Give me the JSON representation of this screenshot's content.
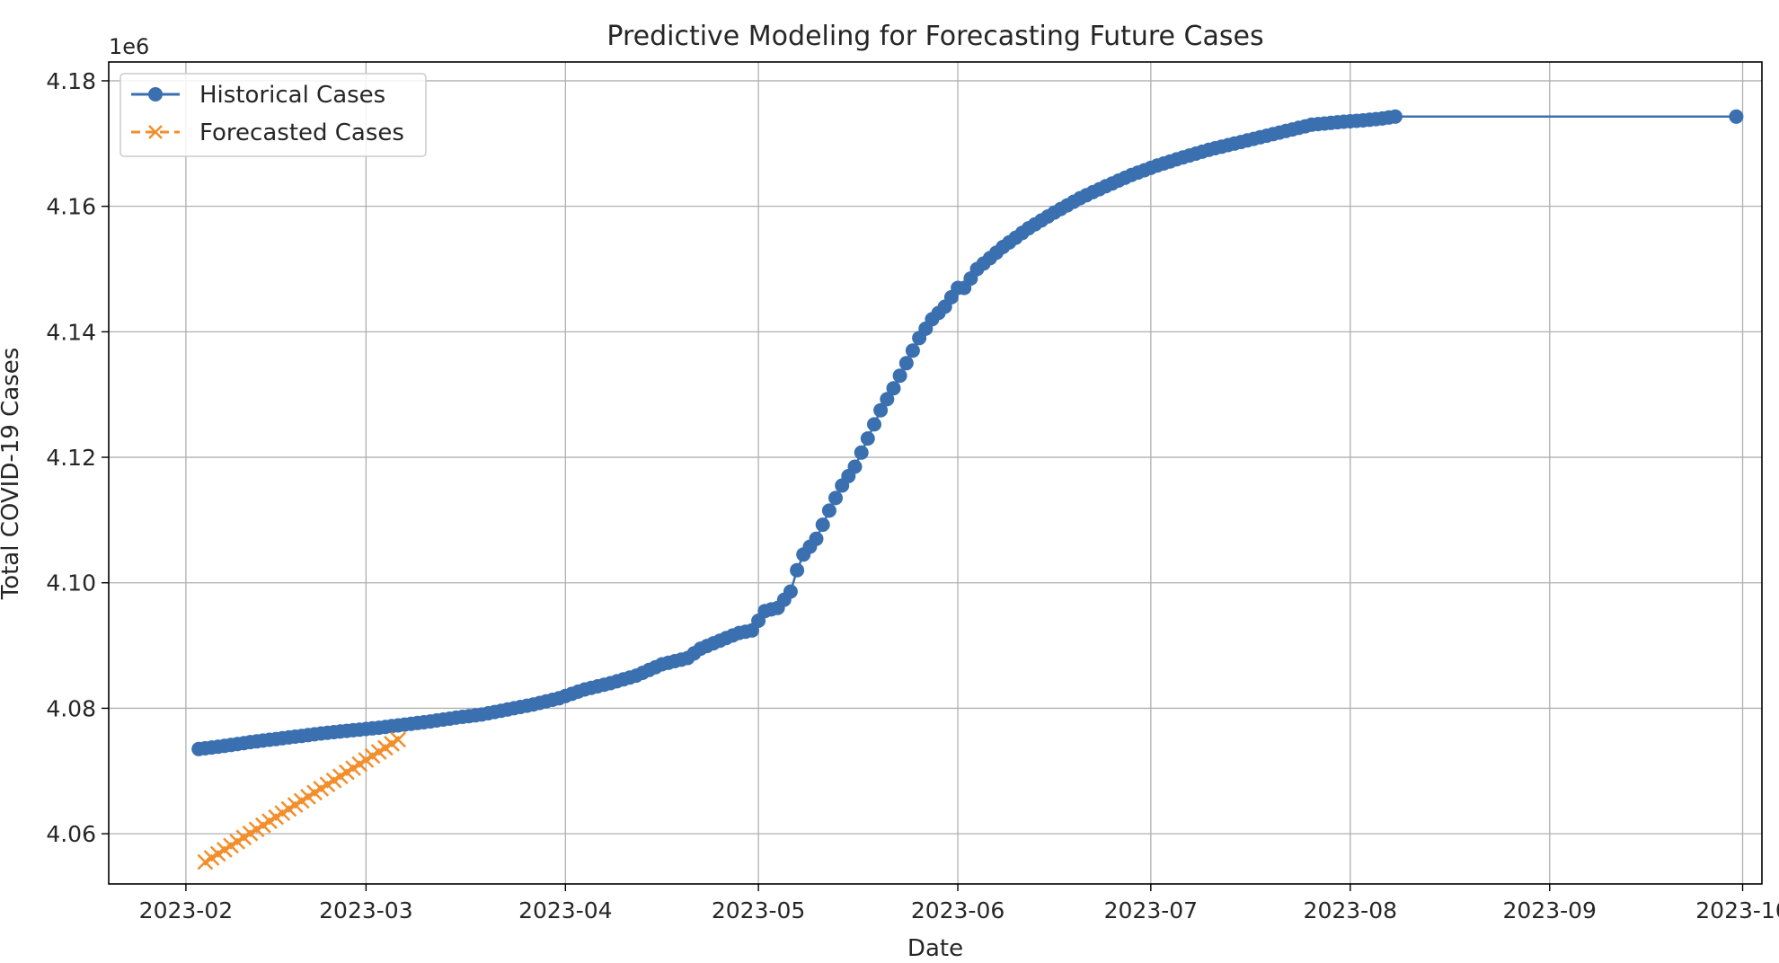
{
  "chart_data": {
    "type": "line",
    "title": "Predictive Modeling for Forecasting Future Cases",
    "xlabel": "Date",
    "ylabel": "Total COVID-19 Cases",
    "y_offset_label": "1e6",
    "xlim": [
      "2023-01-20",
      "2023-10-04"
    ],
    "ylim": [
      4052000,
      4183000
    ],
    "x_ticks": [
      "2023-02-01",
      "2023-03-01",
      "2023-04-01",
      "2023-05-01",
      "2023-06-01",
      "2023-07-01",
      "2023-08-01",
      "2023-09-01",
      "2023-10-01"
    ],
    "x_tick_labels": [
      "2023-02",
      "2023-03",
      "2023-04",
      "2023-05",
      "2023-06",
      "2023-07",
      "2023-08",
      "2023-09",
      "2023-10"
    ],
    "y_ticks": [
      4060000,
      4080000,
      4100000,
      4120000,
      4140000,
      4160000,
      4180000
    ],
    "y_tick_labels": [
      "4.06",
      "4.08",
      "4.10",
      "4.12",
      "4.14",
      "4.16",
      "4.18"
    ],
    "grid": true,
    "legend_position": "upper-left",
    "colors": {
      "historical": "#3a6fb0",
      "forecast": "#f28e2b",
      "grid": "#b0b0b0",
      "axes": "#000000"
    },
    "series": [
      {
        "name": "Historical Cases",
        "style": "solid line with circle markers",
        "x": [
          "2023-02-03",
          "2023-02-07",
          "2023-02-11",
          "2023-02-15",
          "2023-02-19",
          "2023-02-23",
          "2023-02-27",
          "2023-03-03",
          "2023-03-07",
          "2023-03-11",
          "2023-03-15",
          "2023-03-19",
          "2023-03-23",
          "2023-03-27",
          "2023-03-31",
          "2023-04-04",
          "2023-04-08",
          "2023-04-12",
          "2023-04-16",
          "2023-04-20",
          "2023-04-22",
          "2023-04-26",
          "2023-04-28",
          "2023-04-30",
          "2023-05-02",
          "2023-05-04",
          "2023-05-06",
          "2023-05-07",
          "2023-05-08",
          "2023-05-10",
          "2023-05-12",
          "2023-05-14",
          "2023-05-16",
          "2023-05-18",
          "2023-05-20",
          "2023-05-22",
          "2023-05-24",
          "2023-05-26",
          "2023-05-28",
          "2023-05-30",
          "2023-06-01",
          "2023-06-02",
          "2023-06-04",
          "2023-06-08",
          "2023-06-12",
          "2023-06-16",
          "2023-06-20",
          "2023-06-24",
          "2023-06-28",
          "2023-07-02",
          "2023-07-06",
          "2023-07-10",
          "2023-07-14",
          "2023-07-18",
          "2023-07-22",
          "2023-07-26",
          "2023-07-30",
          "2023-08-03",
          "2023-08-06",
          "2023-08-08",
          "2023-09-30"
        ],
        "values": [
          4073500,
          4074000,
          4074600,
          4075100,
          4075600,
          4076100,
          4076500,
          4076900,
          4077400,
          4077900,
          4078500,
          4079000,
          4079800,
          4080600,
          4081600,
          4083000,
          4084000,
          4085200,
          4087000,
          4088000,
          4089500,
          4091200,
          4092000,
          4092400,
          4095500,
          4096000,
          4098600,
          4102000,
          4104500,
          4107000,
          4111500,
          4115500,
          4118500,
          4123000,
          4127500,
          4131000,
          4135000,
          4139000,
          4142000,
          4144000,
          4147000,
          4147000,
          4150000,
          4153500,
          4156500,
          4159000,
          4161300,
          4163200,
          4165000,
          4166500,
          4167800,
          4169000,
          4170000,
          4171000,
          4172000,
          4173000,
          4173400,
          4173700,
          4174000,
          4174300,
          4174300
        ]
      },
      {
        "name": "Forecasted Cases",
        "style": "dashed line with x markers",
        "x": [
          "2023-02-04",
          "2023-03-06"
        ],
        "values": [
          4055500,
          4075000
        ],
        "points": 31
      }
    ]
  }
}
